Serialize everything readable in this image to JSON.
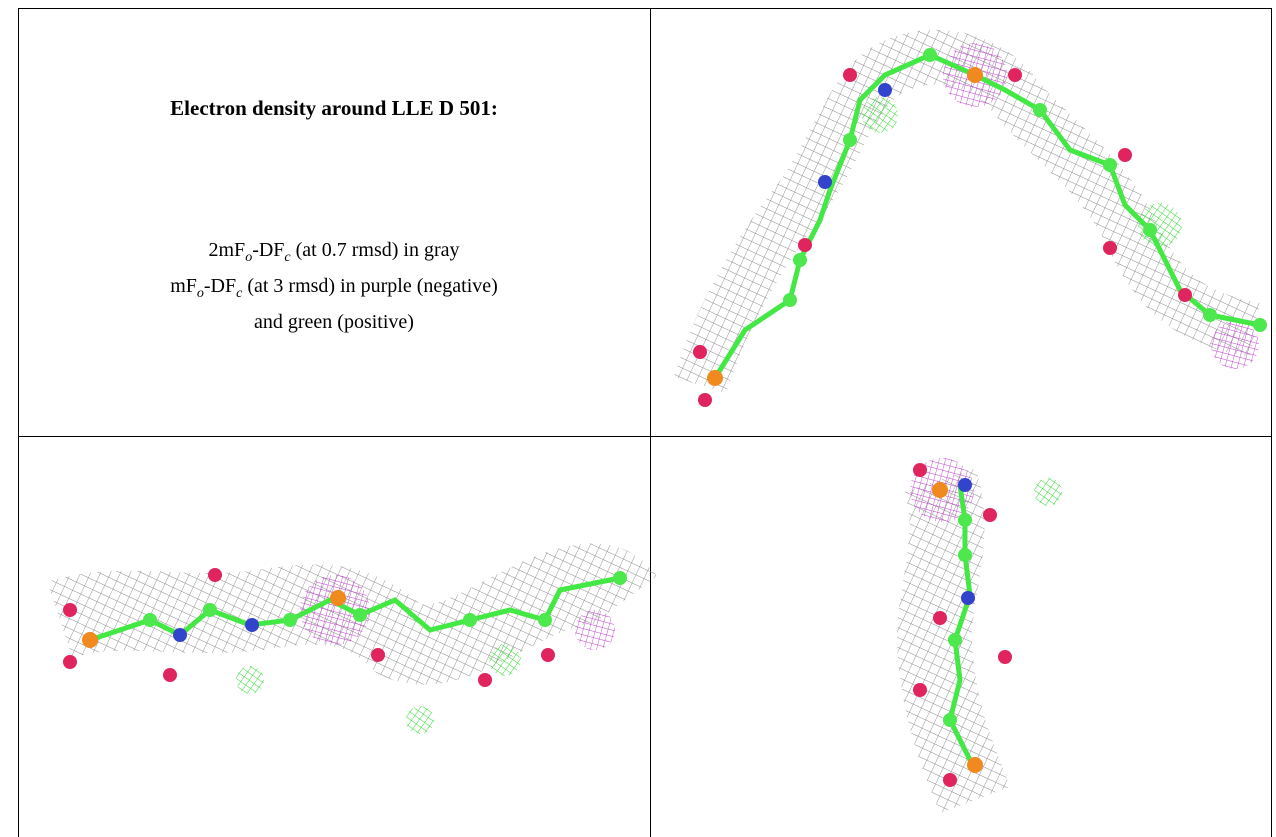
{
  "figure": {
    "title": "Electron density around LLE D 501:",
    "legend": [
      [
        "2mF",
        "o",
        "-DF",
        "c",
        " (at 0.7 rmsd) in gray"
      ],
      [
        "mF",
        "o",
        "-DF",
        "c",
        " (at 3 rmsd) in purple (negative)"
      ],
      [
        "and green (positive)"
      ]
    ]
  }
}
